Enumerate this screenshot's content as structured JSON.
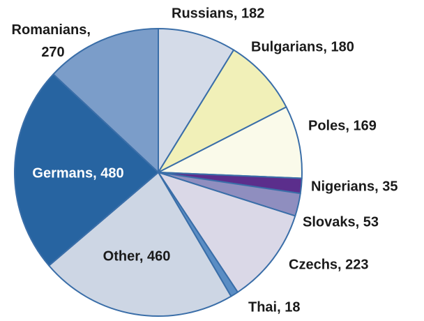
{
  "chart_data": {
    "type": "pie",
    "values": [
      182,
      180,
      169,
      35,
      53,
      223,
      18,
      460,
      480,
      270
    ],
    "value_labels": [
      "Russians, 182",
      "Bulgarians, 180",
      "Poles, 169",
      "Nigerians, 35",
      "Slovaks, 53",
      "Czechs, 223",
      "Thai, 18",
      "Other, 460",
      "Germans, 480",
      "Romanians, 270"
    ],
    "colors": [
      "#d4dbe8",
      "#f1f0b8",
      "#fafaea",
      "#5b2e8c",
      "#8f8ebf",
      "#dad8e7",
      "#5a8dc4",
      "#cdd6e4",
      "#2764a1",
      "#7b9dc9"
    ]
  }
}
